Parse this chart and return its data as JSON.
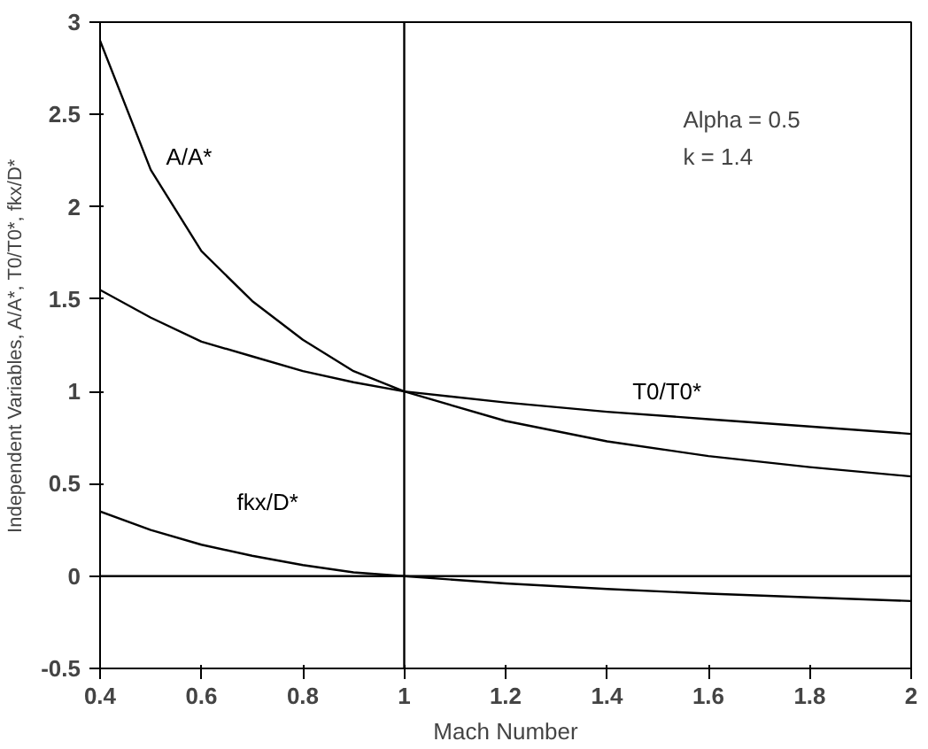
{
  "chart_data": {
    "type": "line",
    "xlabel": "Mach Number",
    "ylabel": "Independent Variables, A/A*, T0/T0*, fkx/D*",
    "x": [
      0.4,
      0.5,
      0.6,
      0.7,
      0.8,
      0.9,
      1,
      1.2,
      1.4,
      1.6,
      1.8,
      2
    ],
    "xlim": [
      0.4,
      2
    ],
    "xticks": [
      0.4,
      0.6,
      0.8,
      1,
      1.2,
      1.4,
      1.6,
      1.8,
      2
    ],
    "ylim": [
      -0.5,
      3
    ],
    "yticks": [
      -0.5,
      0,
      0.5,
      1,
      1.5,
      2,
      2.5,
      3
    ],
    "grid": false,
    "legend": false,
    "marker": "none",
    "line_style": "solid",
    "series": [
      {
        "name": "A/A*",
        "color": "#000000",
        "values": [
          2.9,
          2.2,
          1.76,
          1.49,
          1.28,
          1.11,
          1,
          0.84,
          0.73,
          0.65,
          0.59,
          0.54
        ]
      },
      {
        "name": "T0/T0*",
        "color": "#000000",
        "values": [
          1.55,
          1.4,
          1.27,
          1.19,
          1.11,
          1.05,
          1,
          0.94,
          0.89,
          0.85,
          0.81,
          0.77
        ]
      },
      {
        "name": "fkx/D*",
        "color": "#000000",
        "values": [
          0.35,
          0.25,
          0.17,
          0.11,
          0.06,
          0.02,
          0,
          -0.04,
          -0.07,
          -0.095,
          -0.115,
          -0.135
        ]
      }
    ],
    "ref_lines": [
      {
        "axis": "y",
        "value": 0,
        "color": "#000000"
      },
      {
        "axis": "x",
        "value": 1,
        "color": "#000000"
      }
    ],
    "annotations": [
      "Alpha = 0.5",
      "k = 1.4"
    ]
  }
}
